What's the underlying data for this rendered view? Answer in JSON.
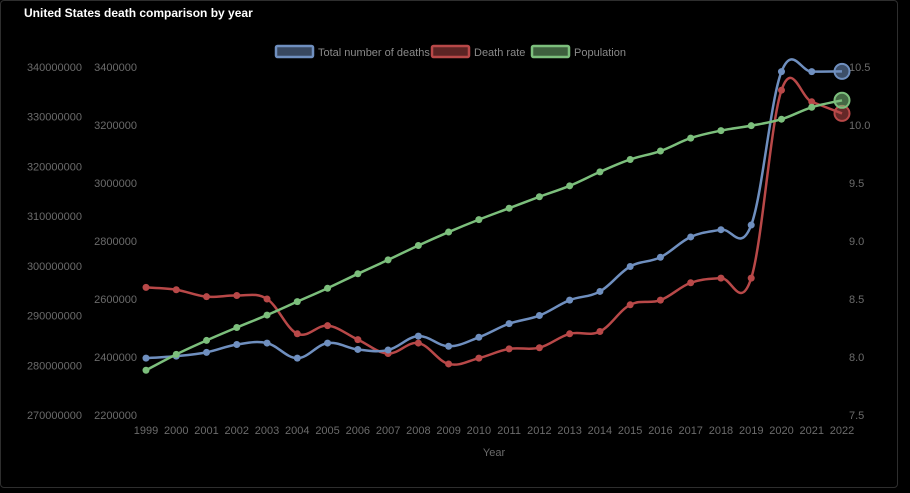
{
  "title": "United States death comparison by year",
  "chart_data": {
    "type": "line",
    "title": "United States death comparison by year",
    "xlabel": "Year",
    "categories": [
      "1999",
      "2000",
      "2001",
      "2002",
      "2003",
      "2004",
      "2005",
      "2006",
      "2007",
      "2008",
      "2009",
      "2010",
      "2011",
      "2012",
      "2013",
      "2014",
      "2015",
      "2016",
      "2017",
      "2018",
      "2019",
      "2020",
      "2021",
      "2022"
    ],
    "series": [
      {
        "name": "Total number of deaths",
        "color": "#6f8fbf",
        "axis": "y_deaths",
        "values": [
          2396000,
          2403000,
          2416000,
          2443000,
          2448000,
          2396000,
          2448000,
          2426000,
          2424000,
          2472000,
          2437000,
          2468000,
          2515000,
          2543000,
          2596000,
          2626000,
          2712000,
          2744000,
          2814000,
          2839000,
          2855000,
          3384000,
          3384000,
          3385000
        ]
      },
      {
        "name": "Death rate",
        "color": "#b84848",
        "axis": "y_rate",
        "values": [
          8.6,
          8.58,
          8.52,
          8.53,
          8.5,
          8.2,
          8.27,
          8.15,
          8.03,
          8.12,
          7.94,
          7.99,
          8.07,
          8.08,
          8.2,
          8.22,
          8.45,
          8.49,
          8.64,
          8.68,
          8.68,
          10.3,
          10.2,
          10.1
        ]
      },
      {
        "name": "Population",
        "color": "#7cbf7c",
        "axis": "y_pop",
        "values": [
          279000000,
          282200000,
          285000000,
          287600000,
          290100000,
          292800000,
          295500000,
          298400000,
          301200000,
          304100000,
          306800000,
          309300000,
          311600000,
          313900000,
          316100000,
          318900000,
          321400000,
          323100000,
          325700000,
          327200000,
          328200000,
          329500000,
          331900000,
          333300000
        ]
      }
    ],
    "axes": {
      "y_pop": {
        "side": "left",
        "ticks": [
          "340000000",
          "330000000",
          "320000000",
          "310000000",
          "300000000",
          "290000000",
          "280000000",
          "270000000"
        ],
        "range": [
          270000000,
          340000000
        ]
      },
      "y_deaths": {
        "side": "left",
        "ticks": [
          "3400000",
          "3200000",
          "3000000",
          "2800000",
          "2600000",
          "2400000",
          "2200000"
        ],
        "range": [
          2200000,
          3400000
        ]
      },
      "y_rate": {
        "side": "right",
        "ticks": [
          "10.5",
          "10.0",
          "9.5",
          "9.0",
          "8.5",
          "8.0",
          "7.5"
        ],
        "range": [
          7.5,
          10.5
        ]
      }
    },
    "legend_position": "top-center",
    "grid": false
  }
}
